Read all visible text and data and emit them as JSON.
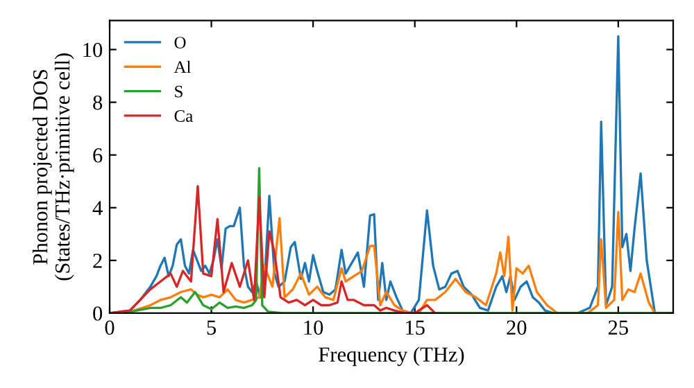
{
  "chart_data": {
    "type": "line",
    "xlabel": "Frequency (THz)",
    "ylabel": "Phonon projected DOS\n(States/THz·primitive cell)",
    "xlim": [
      0,
      27.7
    ],
    "ylim": [
      0,
      11.1
    ],
    "xticks": [
      0,
      5,
      10,
      15,
      20,
      25
    ],
    "yticks": [
      0,
      2,
      4,
      6,
      8,
      10
    ],
    "grid": false,
    "legend": "top left",
    "marker": "none",
    "line_style": "solid",
    "series": [
      {
        "name": "O",
        "color": "#1f77b4",
        "x": [
          0,
          1,
          1.5,
          2,
          2.3,
          2.5,
          2.7,
          2.9,
          3.1,
          3.3,
          3.5,
          3.7,
          3.9,
          4.1,
          4.3,
          4.5,
          4.7,
          4.9,
          5.1,
          5.3,
          5.5,
          5.7,
          5.9,
          6.1,
          6.4,
          6.6,
          6.8,
          7.0,
          7.2,
          7.4,
          7.6,
          7.85,
          8.1,
          8.3,
          8.6,
          8.9,
          9.1,
          9.4,
          9.6,
          9.8,
          10.0,
          10.2,
          10.5,
          10.8,
          11.1,
          11.4,
          11.6,
          11.9,
          12.2,
          12.5,
          12.8,
          13.0,
          13.2,
          13.4,
          13.6,
          13.8,
          14.1,
          14.4,
          14.8,
          15.2,
          15.6,
          15.9,
          16.2,
          16.5,
          16.8,
          17.1,
          17.4,
          17.8,
          18.2,
          18.6,
          19.0,
          19.3,
          19.5,
          19.7,
          19.9,
          20.2,
          20.5,
          20.8,
          21.1,
          21.4,
          21.8,
          23.0,
          23.6,
          24.0,
          24.16,
          24.4,
          24.7,
          25.0,
          25.2,
          25.4,
          25.6,
          25.8,
          26.1,
          26.4,
          26.8,
          27.7
        ],
        "values": [
          0,
          0.1,
          0.5,
          1.0,
          1.4,
          1.8,
          2.1,
          1.4,
          1.8,
          2.6,
          2.8,
          1.8,
          1.5,
          2.4,
          2.0,
          1.6,
          1.8,
          1.5,
          2.0,
          2.8,
          1.7,
          3.2,
          3.3,
          3.3,
          4.0,
          1.8,
          1.0,
          0.8,
          1.2,
          0.6,
          1.0,
          4.45,
          1.5,
          1.0,
          1.2,
          2.5,
          2.7,
          1.3,
          1.9,
          1.2,
          2.2,
          1.6,
          0.8,
          0.7,
          0.9,
          2.4,
          1.5,
          1.9,
          2.3,
          1.0,
          3.7,
          3.75,
          0.5,
          1.9,
          0.5,
          1.2,
          0.6,
          0.1,
          0,
          0.5,
          3.9,
          1.8,
          0.9,
          1.0,
          1.5,
          1.6,
          1.0,
          0.7,
          0.2,
          0.1,
          1.0,
          1.4,
          0.8,
          1.4,
          0.5,
          1.0,
          1.2,
          0.6,
          0.4,
          0.1,
          0,
          0,
          0.2,
          1.0,
          7.26,
          0.3,
          1.0,
          10.5,
          2.5,
          3.0,
          1.6,
          3.2,
          5.3,
          2.0,
          0,
          0
        ]
      },
      {
        "name": "Al",
        "color": "#ff7f0e",
        "x": [
          0,
          1,
          2,
          2.5,
          3,
          3.5,
          4,
          4.3,
          4.6,
          5,
          5.4,
          5.8,
          6.2,
          6.6,
          7,
          7.35,
          7.6,
          8.0,
          8.35,
          8.6,
          9,
          9.4,
          9.8,
          10.2,
          10.6,
          11,
          11.4,
          11.6,
          12,
          12.4,
          12.8,
          13.0,
          13.3,
          13.6,
          14,
          14.4,
          14.8,
          15.2,
          15.6,
          16,
          16.5,
          17,
          17.5,
          18,
          18.5,
          19,
          19.2,
          19.4,
          19.6,
          19.8,
          20,
          20.3,
          20.6,
          21,
          21.5,
          22,
          23.5,
          24.0,
          24.16,
          24.4,
          24.8,
          25.0,
          25.2,
          25.5,
          25.8,
          26.1,
          26.5,
          26.8,
          27.7
        ],
        "values": [
          0,
          0.05,
          0.3,
          0.5,
          0.6,
          0.8,
          0.9,
          0.7,
          0.6,
          0.7,
          0.6,
          0.9,
          0.5,
          0.4,
          0.5,
          0.6,
          1.8,
          1.0,
          3.6,
          0.6,
          0.9,
          1.5,
          0.7,
          1.0,
          0.6,
          0.5,
          1.7,
          1.2,
          1.4,
          1.6,
          2.55,
          2.55,
          0.3,
          0.8,
          0.3,
          0.1,
          0,
          0,
          0.5,
          0.5,
          0.8,
          1.3,
          0.8,
          0.6,
          0.3,
          1.5,
          2.3,
          1.4,
          2.9,
          0.1,
          1.7,
          1.5,
          1.8,
          0.8,
          0.3,
          0,
          0,
          0.3,
          2.8,
          0.2,
          0.5,
          3.84,
          0.5,
          0.9,
          0.8,
          1.5,
          0.4,
          0,
          0
        ]
      },
      {
        "name": "S",
        "color": "#2ca02c",
        "x": [
          0,
          1,
          2,
          2.5,
          3,
          3.5,
          3.8,
          4.2,
          4.6,
          5,
          5.4,
          5.8,
          6.2,
          6.6,
          7,
          7.2,
          7.35,
          7.5,
          7.8,
          8.5,
          27.7
        ],
        "values": [
          0,
          0.05,
          0.2,
          0.2,
          0.3,
          0.6,
          0.4,
          0.8,
          0.3,
          0.15,
          0.4,
          0.2,
          0.25,
          0.2,
          0.3,
          0.5,
          5.5,
          0.3,
          0.05,
          0,
          0
        ]
      },
      {
        "name": "Ca",
        "color": "#d62728",
        "x": [
          0,
          1,
          1.5,
          2,
          2.5,
          3,
          3.3,
          3.6,
          4,
          4.33,
          4.6,
          5,
          5.3,
          5.6,
          6,
          6.4,
          6.8,
          7.1,
          7.35,
          7.6,
          7.85,
          8.1,
          8.4,
          8.8,
          9.2,
          9.6,
          10,
          10.4,
          10.8,
          11.2,
          11.4,
          11.7,
          12,
          12.5,
          13,
          13.3,
          13.6,
          14,
          14.5,
          15,
          15.6,
          16
        ],
        "values": [
          0,
          0.1,
          0.5,
          0.9,
          1.2,
          1.5,
          1.0,
          1.6,
          1.2,
          4.82,
          1.5,
          1.4,
          3.57,
          0.8,
          1.9,
          1.0,
          2.0,
          0.5,
          4.4,
          0.6,
          3.1,
          2.3,
          0.6,
          0.4,
          0.5,
          0.3,
          0.5,
          0.3,
          0.3,
          0.4,
          1.2,
          0.5,
          0.5,
          0.3,
          0.3,
          0.1,
          0.2,
          0.1,
          0,
          0,
          0.3,
          0
        ]
      }
    ]
  }
}
